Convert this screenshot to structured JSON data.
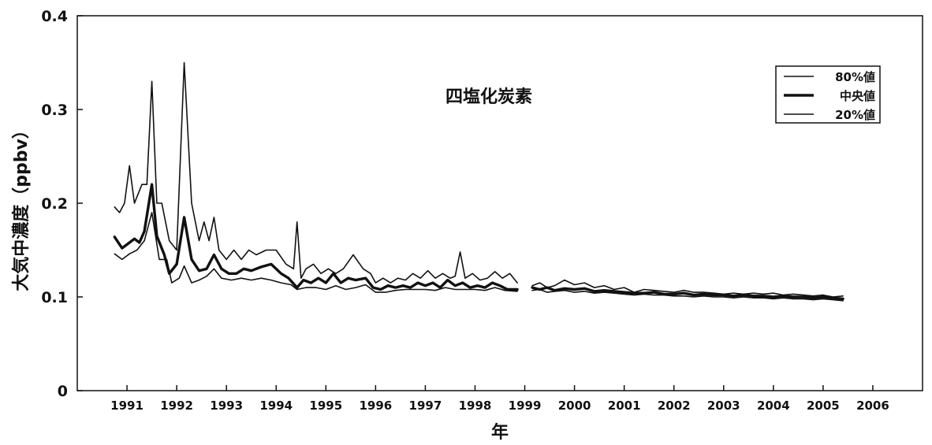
{
  "chart_data": {
    "type": "line",
    "title": "四塩化炭素",
    "xlabel": "年",
    "ylabel": "大気中濃度（ppbv）",
    "ylim": [
      0,
      0.4
    ],
    "yticks": [
      "0",
      "0.1",
      "0.2",
      "0.3",
      "0.4"
    ],
    "xlim": [
      1990.0,
      2007.0
    ],
    "xticks": [
      "1991",
      "1992",
      "1993",
      "1994",
      "1995",
      "1996",
      "1997",
      "1998",
      "1999",
      "2000",
      "2001",
      "2002",
      "2003",
      "2004",
      "2005",
      "2006"
    ],
    "grid": false,
    "legend_position": "top-right",
    "series": [
      {
        "name": "80%値",
        "stroke": "thin",
        "segments": [
          [
            [
              1990.75,
              0.196
            ],
            [
              1990.85,
              0.19
            ],
            [
              1990.95,
              0.2
            ],
            [
              1991.05,
              0.24
            ],
            [
              1991.15,
              0.2
            ],
            [
              1991.3,
              0.22
            ],
            [
              1991.4,
              0.22
            ],
            [
              1991.5,
              0.33
            ],
            [
              1991.6,
              0.2
            ],
            [
              1991.7,
              0.2
            ],
            [
              1991.85,
              0.16
            ],
            [
              1992.0,
              0.15
            ],
            [
              1992.15,
              0.35
            ],
            [
              1992.3,
              0.2
            ],
            [
              1992.45,
              0.16
            ],
            [
              1992.55,
              0.18
            ],
            [
              1992.65,
              0.16
            ],
            [
              1992.75,
              0.185
            ],
            [
              1992.85,
              0.15
            ],
            [
              1993.0,
              0.14
            ],
            [
              1993.15,
              0.15
            ],
            [
              1993.3,
              0.14
            ],
            [
              1993.45,
              0.15
            ],
            [
              1993.6,
              0.145
            ],
            [
              1993.8,
              0.15
            ],
            [
              1994.0,
              0.15
            ],
            [
              1994.2,
              0.135
            ],
            [
              1994.35,
              0.13
            ],
            [
              1994.42,
              0.18
            ],
            [
              1994.5,
              0.12
            ],
            [
              1994.6,
              0.13
            ],
            [
              1994.75,
              0.135
            ],
            [
              1994.9,
              0.125
            ],
            [
              1995.05,
              0.13
            ],
            [
              1995.2,
              0.125
            ],
            [
              1995.35,
              0.13
            ],
            [
              1995.55,
              0.145
            ],
            [
              1995.75,
              0.13
            ],
            [
              1995.9,
              0.125
            ],
            [
              1996.0,
              0.115
            ],
            [
              1996.15,
              0.12
            ],
            [
              1996.3,
              0.115
            ],
            [
              1996.45,
              0.12
            ],
            [
              1996.6,
              0.118
            ],
            [
              1996.75,
              0.125
            ],
            [
              1996.9,
              0.12
            ],
            [
              1997.05,
              0.128
            ],
            [
              1997.2,
              0.12
            ],
            [
              1997.35,
              0.125
            ],
            [
              1997.5,
              0.12
            ],
            [
              1997.6,
              0.122
            ],
            [
              1997.7,
              0.148
            ],
            [
              1997.8,
              0.12
            ],
            [
              1997.95,
              0.125
            ],
            [
              1998.1,
              0.118
            ],
            [
              1998.25,
              0.12
            ],
            [
              1998.4,
              0.127
            ],
            [
              1998.55,
              0.12
            ],
            [
              1998.7,
              0.125
            ],
            [
              1998.85,
              0.115
            ]
          ],
          [
            [
              1999.15,
              0.112
            ],
            [
              1999.3,
              0.115
            ],
            [
              1999.45,
              0.11
            ],
            [
              1999.6,
              0.112
            ],
            [
              1999.8,
              0.118
            ],
            [
              2000.0,
              0.113
            ],
            [
              2000.2,
              0.115
            ],
            [
              2000.4,
              0.11
            ],
            [
              2000.6,
              0.112
            ],
            [
              2000.8,
              0.108
            ],
            [
              2001.0,
              0.11
            ],
            [
              2001.2,
              0.105
            ],
            [
              2001.4,
              0.108
            ],
            [
              2001.6,
              0.107
            ],
            [
              2001.8,
              0.106
            ],
            [
              2002.0,
              0.105
            ],
            [
              2002.2,
              0.107
            ],
            [
              2002.4,
              0.105
            ],
            [
              2002.6,
              0.105
            ],
            [
              2002.8,
              0.104
            ],
            [
              2003.0,
              0.103
            ],
            [
              2003.2,
              0.104
            ],
            [
              2003.4,
              0.103
            ],
            [
              2003.6,
              0.104
            ],
            [
              2003.8,
              0.103
            ],
            [
              2004.0,
              0.104
            ],
            [
              2004.2,
              0.102
            ],
            [
              2004.4,
              0.103
            ],
            [
              2004.6,
              0.102
            ],
            [
              2004.8,
              0.101
            ],
            [
              2005.0,
              0.102
            ],
            [
              2005.2,
              0.1
            ],
            [
              2005.4,
              0.101
            ]
          ]
        ]
      },
      {
        "name": "中央値",
        "stroke": "thick",
        "segments": [
          [
            [
              1990.75,
              0.164
            ],
            [
              1990.9,
              0.152
            ],
            [
              1991.05,
              0.158
            ],
            [
              1991.15,
              0.162
            ],
            [
              1991.25,
              0.158
            ],
            [
              1991.35,
              0.17
            ],
            [
              1991.5,
              0.22
            ],
            [
              1991.6,
              0.165
            ],
            [
              1991.75,
              0.145
            ],
            [
              1991.85,
              0.125
            ],
            [
              1992.0,
              0.135
            ],
            [
              1992.15,
              0.185
            ],
            [
              1992.3,
              0.14
            ],
            [
              1992.45,
              0.128
            ],
            [
              1992.6,
              0.13
            ],
            [
              1992.75,
              0.145
            ],
            [
              1992.9,
              0.13
            ],
            [
              1993.05,
              0.125
            ],
            [
              1993.2,
              0.125
            ],
            [
              1993.35,
              0.13
            ],
            [
              1993.5,
              0.128
            ],
            [
              1993.7,
              0.132
            ],
            [
              1993.9,
              0.135
            ],
            [
              1994.1,
              0.125
            ],
            [
              1994.25,
              0.12
            ],
            [
              1994.42,
              0.11
            ],
            [
              1994.55,
              0.118
            ],
            [
              1994.7,
              0.115
            ],
            [
              1994.85,
              0.12
            ],
            [
              1995.0,
              0.115
            ],
            [
              1995.15,
              0.125
            ],
            [
              1995.3,
              0.115
            ],
            [
              1995.45,
              0.12
            ],
            [
              1995.6,
              0.118
            ],
            [
              1995.8,
              0.12
            ],
            [
              1995.95,
              0.11
            ],
            [
              1996.1,
              0.108
            ],
            [
              1996.25,
              0.112
            ],
            [
              1996.4,
              0.11
            ],
            [
              1996.55,
              0.112
            ],
            [
              1996.7,
              0.11
            ],
            [
              1996.85,
              0.115
            ],
            [
              1997.0,
              0.112
            ],
            [
              1997.15,
              0.115
            ],
            [
              1997.3,
              0.11
            ],
            [
              1997.45,
              0.118
            ],
            [
              1997.6,
              0.112
            ],
            [
              1997.75,
              0.115
            ],
            [
              1997.9,
              0.11
            ],
            [
              1998.05,
              0.112
            ],
            [
              1998.2,
              0.11
            ],
            [
              1998.35,
              0.115
            ],
            [
              1998.5,
              0.112
            ],
            [
              1998.65,
              0.108
            ],
            [
              1998.85,
              0.108
            ]
          ],
          [
            [
              1999.15,
              0.11
            ],
            [
              1999.3,
              0.108
            ],
            [
              1999.45,
              0.11
            ],
            [
              1999.6,
              0.107
            ],
            [
              1999.8,
              0.109
            ],
            [
              2000.0,
              0.108
            ],
            [
              2000.2,
              0.109
            ],
            [
              2000.4,
              0.106
            ],
            [
              2000.6,
              0.107
            ],
            [
              2000.8,
              0.106
            ],
            [
              2001.0,
              0.105
            ],
            [
              2001.2,
              0.104
            ],
            [
              2001.4,
              0.104
            ],
            [
              2001.6,
              0.105
            ],
            [
              2001.8,
              0.103
            ],
            [
              2002.0,
              0.103
            ],
            [
              2002.2,
              0.104
            ],
            [
              2002.4,
              0.102
            ],
            [
              2002.6,
              0.103
            ],
            [
              2002.8,
              0.102
            ],
            [
              2003.0,
              0.102
            ],
            [
              2003.2,
              0.101
            ],
            [
              2003.4,
              0.102
            ],
            [
              2003.6,
              0.101
            ],
            [
              2003.8,
              0.101
            ],
            [
              2004.0,
              0.1
            ],
            [
              2004.2,
              0.101
            ],
            [
              2004.4,
              0.1
            ],
            [
              2004.6,
              0.1
            ],
            [
              2004.8,
              0.099
            ],
            [
              2005.0,
              0.1
            ],
            [
              2005.2,
              0.099
            ],
            [
              2005.4,
              0.098
            ]
          ]
        ]
      },
      {
        "name": "20%値",
        "stroke": "thin",
        "segments": [
          [
            [
              1990.75,
              0.146
            ],
            [
              1990.9,
              0.14
            ],
            [
              1991.05,
              0.146
            ],
            [
              1991.2,
              0.15
            ],
            [
              1991.35,
              0.16
            ],
            [
              1991.5,
              0.19
            ],
            [
              1991.65,
              0.14
            ],
            [
              1991.8,
              0.14
            ],
            [
              1991.9,
              0.115
            ],
            [
              1992.05,
              0.12
            ],
            [
              1992.15,
              0.133
            ],
            [
              1992.3,
              0.115
            ],
            [
              1992.45,
              0.118
            ],
            [
              1992.6,
              0.122
            ],
            [
              1992.75,
              0.13
            ],
            [
              1992.9,
              0.12
            ],
            [
              1993.1,
              0.118
            ],
            [
              1993.3,
              0.12
            ],
            [
              1993.5,
              0.118
            ],
            [
              1993.7,
              0.12
            ],
            [
              1993.9,
              0.118
            ],
            [
              1994.1,
              0.115
            ],
            [
              1994.3,
              0.113
            ],
            [
              1994.42,
              0.108
            ],
            [
              1994.6,
              0.11
            ],
            [
              1994.8,
              0.11
            ],
            [
              1995.0,
              0.108
            ],
            [
              1995.2,
              0.112
            ],
            [
              1995.4,
              0.108
            ],
            [
              1995.6,
              0.11
            ],
            [
              1995.8,
              0.113
            ],
            [
              1996.0,
              0.105
            ],
            [
              1996.2,
              0.105
            ],
            [
              1996.4,
              0.107
            ],
            [
              1996.6,
              0.108
            ],
            [
              1996.8,
              0.108
            ],
            [
              1997.0,
              0.108
            ],
            [
              1997.2,
              0.107
            ],
            [
              1997.4,
              0.11
            ],
            [
              1997.6,
              0.108
            ],
            [
              1997.8,
              0.108
            ],
            [
              1998.0,
              0.108
            ],
            [
              1998.2,
              0.107
            ],
            [
              1998.4,
              0.11
            ],
            [
              1998.6,
              0.107
            ],
            [
              1998.85,
              0.106
            ]
          ],
          [
            [
              1999.15,
              0.107
            ],
            [
              1999.3,
              0.108
            ],
            [
              1999.45,
              0.105
            ],
            [
              1999.6,
              0.106
            ],
            [
              1999.8,
              0.107
            ],
            [
              2000.0,
              0.105
            ],
            [
              2000.2,
              0.106
            ],
            [
              2000.4,
              0.104
            ],
            [
              2000.6,
              0.105
            ],
            [
              2000.8,
              0.104
            ],
            [
              2001.0,
              0.103
            ],
            [
              2001.2,
              0.102
            ],
            [
              2001.4,
              0.103
            ],
            [
              2001.6,
              0.102
            ],
            [
              2001.8,
              0.102
            ],
            [
              2002.0,
              0.101
            ],
            [
              2002.2,
              0.101
            ],
            [
              2002.4,
              0.1
            ],
            [
              2002.6,
              0.101
            ],
            [
              2002.8,
              0.1
            ],
            [
              2003.0,
              0.1
            ],
            [
              2003.2,
              0.099
            ],
            [
              2003.4,
              0.1
            ],
            [
              2003.6,
              0.099
            ],
            [
              2003.8,
              0.099
            ],
            [
              2004.0,
              0.098
            ],
            [
              2004.2,
              0.099
            ],
            [
              2004.4,
              0.098
            ],
            [
              2004.6,
              0.098
            ],
            [
              2004.8,
              0.097
            ],
            [
              2005.0,
              0.098
            ],
            [
              2005.2,
              0.097
            ],
            [
              2005.4,
              0.096
            ]
          ]
        ]
      }
    ]
  }
}
